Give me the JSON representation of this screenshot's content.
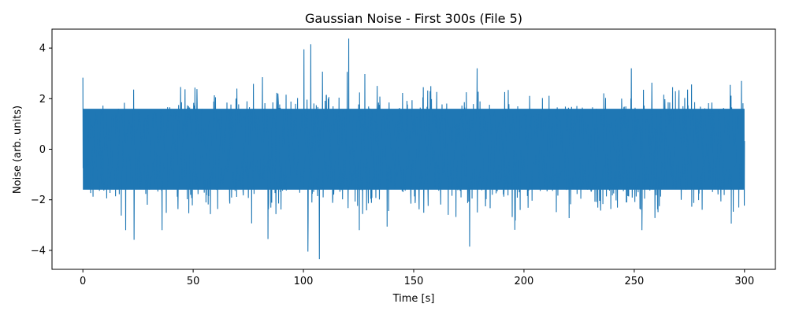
{
  "chart_data": {
    "type": "line",
    "title": "Gaussian Noise - First 300s (File 5)",
    "xlabel": "Time [s]",
    "ylabel": "Noise (arb. units)",
    "xlim": [
      -14,
      314
    ],
    "ylim": [
      -4.75,
      4.75
    ],
    "xticks": [
      0,
      50,
      100,
      150,
      200,
      250,
      300
    ],
    "yticks": [
      -4,
      -2,
      0,
      2,
      4
    ],
    "grid": false,
    "line_color": "#1f77b4",
    "series": [
      {
        "x_range": [
          0,
          300
        ],
        "core_band": [
          -1.6,
          1.6
        ],
        "noted_extremes": [
          {
            "x": 120.5,
            "y": 4.38
          },
          {
            "x": 103.3,
            "y": 4.15
          },
          {
            "x": 100.2,
            "y": 3.95
          },
          {
            "x": 107.2,
            "y": -4.35
          },
          {
            "x": 102.0,
            "y": -4.05
          },
          {
            "x": 175.4,
            "y": -3.85
          },
          {
            "x": 23.2,
            "y": -3.58
          },
          {
            "x": 83.9,
            "y": -3.55
          }
        ]
      }
    ]
  }
}
